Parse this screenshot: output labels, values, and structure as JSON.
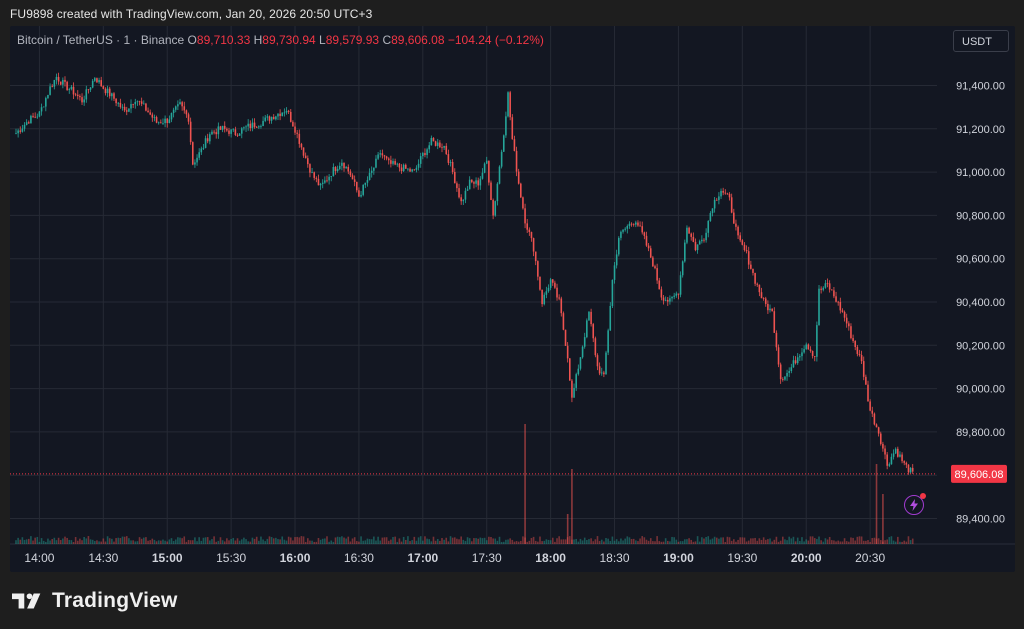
{
  "header": {
    "text": "FU9898 created with TradingView.com, Jan 20, 2026 20:50 UTC+3"
  },
  "legend": {
    "symbol": "Bitcoin / TetherUS · 1 · Binance",
    "open_label": "O",
    "open": "89,710.33",
    "high_label": "H",
    "high": "89,730.94",
    "low_label": "L",
    "low": "89,579.93",
    "close_label": "C",
    "close": "89,606.08",
    "change": "−104.24 (−0.12%)"
  },
  "currency": "USDT",
  "current_price_tag": "89,606.08",
  "brand": {
    "name": "TradingView"
  },
  "colors": {
    "up": "#26a69a",
    "down": "#ef5350",
    "background": "#131722",
    "price_line": "#f23645"
  },
  "icons": [
    "tradingview-logo-icon",
    "flash-icon"
  ],
  "chart_data": {
    "type": "candlestick",
    "title": "",
    "xlabel": "",
    "ylabel": "",
    "ylim": [
      89300,
      91700
    ],
    "y_ticks": [
      "89,400.00",
      "89,600.00",
      "89,800.00",
      "90,000.00",
      "90,200.00",
      "90,400.00",
      "90,600.00",
      "90,800.00",
      "91,000.00",
      "91,200.00",
      "91,400.00"
    ],
    "y_tick_values": [
      89400,
      89600,
      89800,
      90000,
      90200,
      90400,
      90600,
      90800,
      91000,
      91200,
      91400
    ],
    "x_ticks": [
      "14:00",
      "14:30",
      "15:00",
      "15:30",
      "16:00",
      "16:30",
      "17:00",
      "17:30",
      "18:00",
      "18:30",
      "19:00",
      "19:30",
      "20:00",
      "20:30"
    ],
    "x_tick_bold": [
      false,
      false,
      true,
      false,
      true,
      false,
      true,
      false,
      true,
      false,
      true,
      false,
      true,
      false
    ],
    "x_start": "13:49",
    "x_end": "20:50",
    "current_price": 89606.08,
    "price_path": [
      [
        "13:49",
        91180
      ],
      [
        "13:55",
        91240
      ],
      [
        "14:00",
        91270
      ],
      [
        "14:05",
        91390
      ],
      [
        "14:08",
        91440
      ],
      [
        "14:12",
        91400
      ],
      [
        "14:16",
        91370
      ],
      [
        "14:20",
        91330
      ],
      [
        "14:24",
        91400
      ],
      [
        "14:26",
        91440
      ],
      [
        "14:30",
        91390
      ],
      [
        "14:35",
        91340
      ],
      [
        "14:40",
        91280
      ],
      [
        "14:45",
        91340
      ],
      [
        "14:50",
        91290
      ],
      [
        "14:55",
        91230
      ],
      [
        "15:00",
        91240
      ],
      [
        "15:06",
        91310
      ],
      [
        "15:10",
        91250
      ],
      [
        "15:12",
        91040
      ],
      [
        "15:16",
        91100
      ],
      [
        "15:20",
        91180
      ],
      [
        "15:26",
        91200
      ],
      [
        "15:32",
        91180
      ],
      [
        "15:38",
        91210
      ],
      [
        "15:44",
        91230
      ],
      [
        "15:50",
        91260
      ],
      [
        "15:56",
        91290
      ],
      [
        "16:00",
        91200
      ],
      [
        "16:04",
        91090
      ],
      [
        "16:08",
        90990
      ],
      [
        "16:12",
        90930
      ],
      [
        "16:18",
        91010
      ],
      [
        "16:22",
        91050
      ],
      [
        "16:26",
        90990
      ],
      [
        "16:30",
        90890
      ],
      [
        "16:36",
        91000
      ],
      [
        "16:40",
        91090
      ],
      [
        "16:44",
        91040
      ],
      [
        "16:50",
        91020
      ],
      [
        "16:56",
        91000
      ],
      [
        "17:00",
        91080
      ],
      [
        "17:04",
        91140
      ],
      [
        "17:10",
        91120
      ],
      [
        "17:14",
        91000
      ],
      [
        "17:18",
        90860
      ],
      [
        "17:22",
        90950
      ],
      [
        "17:26",
        90950
      ],
      [
        "17:30",
        91050
      ],
      [
        "17:33",
        90800
      ],
      [
        "17:37",
        91100
      ],
      [
        "17:40",
        91360
      ],
      [
        "17:42",
        91150
      ],
      [
        "17:45",
        90950
      ],
      [
        "17:48",
        90780
      ],
      [
        "17:52",
        90650
      ],
      [
        "17:56",
        90400
      ],
      [
        "18:00",
        90500
      ],
      [
        "18:04",
        90400
      ],
      [
        "18:08",
        90150
      ],
      [
        "18:10",
        89950
      ],
      [
        "18:14",
        90150
      ],
      [
        "18:18",
        90350
      ],
      [
        "18:22",
        90100
      ],
      [
        "18:25",
        90050
      ],
      [
        "18:29",
        90500
      ],
      [
        "18:32",
        90700
      ],
      [
        "18:36",
        90750
      ],
      [
        "18:40",
        90780
      ],
      [
        "18:44",
        90690
      ],
      [
        "18:48",
        90580
      ],
      [
        "18:52",
        90430
      ],
      [
        "18:56",
        90400
      ],
      [
        "19:00",
        90450
      ],
      [
        "19:04",
        90750
      ],
      [
        "19:08",
        90650
      ],
      [
        "19:12",
        90700
      ],
      [
        "19:16",
        90850
      ],
      [
        "19:20",
        90920
      ],
      [
        "19:24",
        90870
      ],
      [
        "19:28",
        90690
      ],
      [
        "19:32",
        90620
      ],
      [
        "19:36",
        90500
      ],
      [
        "19:40",
        90400
      ],
      [
        "19:44",
        90350
      ],
      [
        "19:48",
        90050
      ],
      [
        "19:52",
        90080
      ],
      [
        "19:56",
        90150
      ],
      [
        "20:00",
        90210
      ],
      [
        "20:04",
        90150
      ],
      [
        "20:06",
        90450
      ],
      [
        "20:10",
        90480
      ],
      [
        "20:14",
        90410
      ],
      [
        "20:18",
        90330
      ],
      [
        "20:22",
        90220
      ],
      [
        "20:26",
        90120
      ],
      [
        "20:30",
        89900
      ],
      [
        "20:34",
        89800
      ],
      [
        "20:38",
        89650
      ],
      [
        "20:42",
        89720
      ],
      [
        "20:46",
        89650
      ],
      [
        "20:50",
        89606
      ]
    ],
    "volume_spikes": [
      {
        "time": "17:48",
        "level": 0.24
      },
      {
        "time": "18:10",
        "level": 0.15
      },
      {
        "time": "18:08",
        "level": 0.06
      },
      {
        "time": "20:33",
        "level": 0.16
      },
      {
        "time": "20:36",
        "level": 0.1
      }
    ],
    "grid": true,
    "legend_position": "top-left"
  }
}
